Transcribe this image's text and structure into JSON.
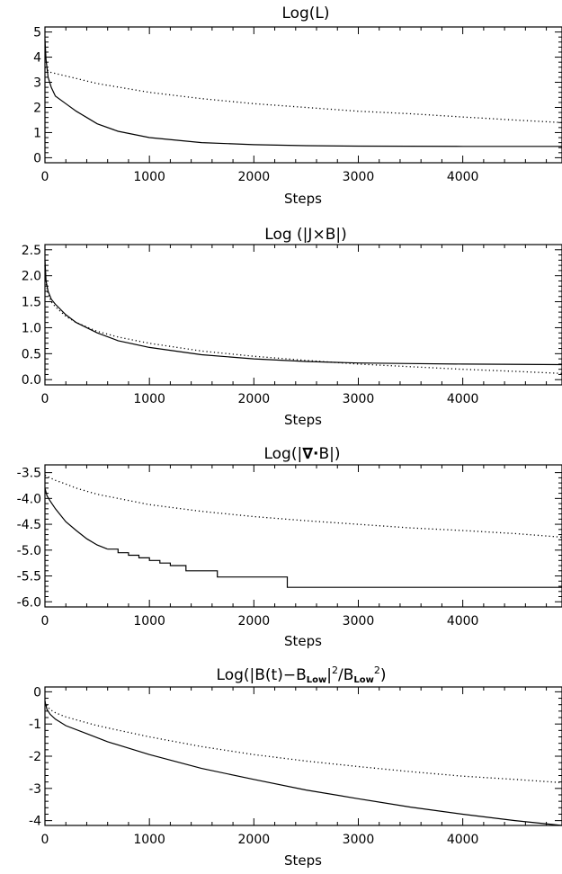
{
  "chart_data": [
    {
      "type": "line",
      "title": "Log(L)",
      "xlabel": "Steps",
      "ylabel": "",
      "xlim": [
        0,
        4950
      ],
      "ylim": [
        -0.2,
        5.2
      ],
      "xticks": [
        0,
        1000,
        2000,
        3000,
        4000
      ],
      "xtick_labels": [
        "0",
        "1000",
        "2000",
        "3000",
        "4000"
      ],
      "yticks": [
        0,
        1,
        2,
        3,
        4,
        5
      ],
      "ytick_labels": [
        "0",
        "1",
        "2",
        "3",
        "4",
        "5"
      ],
      "series": [
        {
          "style": "solid",
          "step": false,
          "x": [
            0,
            10,
            30,
            60,
            100,
            200,
            300,
            400,
            500,
            700,
            1000,
            1500,
            2000,
            2500,
            3000,
            4000,
            4950
          ],
          "y": [
            4.7,
            3.9,
            3.2,
            2.8,
            2.45,
            2.15,
            1.85,
            1.6,
            1.35,
            1.05,
            0.8,
            0.6,
            0.52,
            0.48,
            0.46,
            0.45,
            0.45
          ]
        },
        {
          "style": "dotted",
          "step": false,
          "x": [
            0,
            20,
            50,
            100,
            200,
            500,
            1000,
            1500,
            2000,
            2500,
            3000,
            3500,
            4000,
            4500,
            4950
          ],
          "y": [
            3.6,
            3.5,
            3.4,
            3.35,
            3.25,
            2.95,
            2.6,
            2.35,
            2.15,
            2.0,
            1.85,
            1.75,
            1.62,
            1.5,
            1.4
          ]
        }
      ]
    },
    {
      "type": "line",
      "title": "Log (|J×B|)",
      "xlabel": "Steps",
      "ylabel": "",
      "xlim": [
        0,
        4950
      ],
      "ylim": [
        -0.1,
        2.6
      ],
      "xticks": [
        0,
        1000,
        2000,
        3000,
        4000
      ],
      "xtick_labels": [
        "0",
        "1000",
        "2000",
        "3000",
        "4000"
      ],
      "yticks": [
        0,
        0.5,
        1.0,
        1.5,
        2.0,
        2.5
      ],
      "ytick_labels": [
        "0.0",
        "0.5",
        "1.0",
        "1.5",
        "2.0",
        "2.5"
      ],
      "series": [
        {
          "style": "solid",
          "step": false,
          "x": [
            0,
            10,
            30,
            60,
            100,
            200,
            300,
            500,
            700,
            1000,
            1500,
            2000,
            2500,
            3000,
            3500,
            4000,
            4950
          ],
          "y": [
            2.3,
            1.9,
            1.7,
            1.55,
            1.45,
            1.25,
            1.1,
            0.9,
            0.75,
            0.62,
            0.48,
            0.4,
            0.35,
            0.32,
            0.31,
            0.3,
            0.29
          ]
        },
        {
          "style": "dotted",
          "step": false,
          "x": [
            0,
            10,
            30,
            60,
            100,
            200,
            300,
            500,
            700,
            1000,
            1500,
            2000,
            2500,
            3000,
            3500,
            4000,
            4500,
            4950
          ],
          "y": [
            2.2,
            1.85,
            1.65,
            1.5,
            1.4,
            1.22,
            1.1,
            0.93,
            0.82,
            0.7,
            0.55,
            0.45,
            0.37,
            0.3,
            0.25,
            0.2,
            0.16,
            0.12
          ]
        }
      ]
    },
    {
      "type": "line",
      "title": "Log(|∇·B|)",
      "xlabel": "Steps",
      "ylabel": "",
      "xlim": [
        0,
        4950
      ],
      "ylim": [
        -6.1,
        -3.35
      ],
      "xticks": [
        0,
        1000,
        2000,
        3000,
        4000
      ],
      "xtick_labels": [
        "0",
        "1000",
        "2000",
        "3000",
        "4000"
      ],
      "yticks": [
        -6.0,
        -5.5,
        -5.0,
        -4.5,
        -4.0,
        -3.5
      ],
      "ytick_labels": [
        "-6.0",
        "-5.5",
        "-5.0",
        "-4.5",
        "-4.0",
        "-3.5"
      ],
      "series": [
        {
          "style": "solid",
          "step": false,
          "x": [
            0,
            20,
            50,
            100,
            200,
            300,
            400,
            500,
            600
          ],
          "y": [
            -3.8,
            -3.95,
            -4.05,
            -4.2,
            -4.45,
            -4.62,
            -4.78,
            -4.9,
            -4.98
          ]
        },
        {
          "style": "solid",
          "step": true,
          "x": [
            600,
            700,
            800,
            900,
            1000,
            1100,
            1200,
            1350,
            1650,
            2320,
            4950
          ],
          "y": [
            -4.98,
            -5.05,
            -5.1,
            -5.15,
            -5.2,
            -5.25,
            -5.3,
            -5.4,
            -5.52,
            -5.72,
            -5.72
          ]
        },
        {
          "style": "dotted",
          "step": false,
          "x": [
            0,
            50,
            100,
            200,
            300,
            500,
            700,
            1000,
            1500,
            2000,
            2500,
            3000,
            3500,
            4000,
            4500,
            4950
          ],
          "y": [
            -3.55,
            -3.6,
            -3.65,
            -3.72,
            -3.8,
            -3.92,
            -4.0,
            -4.12,
            -4.25,
            -4.35,
            -4.43,
            -4.5,
            -4.57,
            -4.62,
            -4.68,
            -4.75
          ]
        }
      ]
    },
    {
      "type": "line",
      "title": "Log(|B(t)−B_Low|²/B_Low²)",
      "xlabel": "Steps",
      "ylabel": "",
      "xlim": [
        0,
        4950
      ],
      "ylim": [
        -4.15,
        0.15
      ],
      "xticks": [
        0,
        1000,
        2000,
        3000,
        4000
      ],
      "xtick_labels": [
        "0",
        "1000",
        "2000",
        "3000",
        "4000"
      ],
      "yticks": [
        -4,
        -3,
        -2,
        -1,
        0
      ],
      "ytick_labels": [
        "-4",
        "-3",
        "-2",
        "-1",
        "0"
      ],
      "series": [
        {
          "style": "solid",
          "step": false,
          "x": [
            0,
            20,
            50,
            100,
            200,
            400,
            600,
            1000,
            1500,
            2000,
            2500,
            3000,
            3500,
            4000,
            4500,
            4950
          ],
          "y": [
            -0.3,
            -0.55,
            -0.7,
            -0.85,
            -1.05,
            -1.3,
            -1.55,
            -1.95,
            -2.38,
            -2.72,
            -3.05,
            -3.32,
            -3.58,
            -3.8,
            -4.0,
            -4.15
          ]
        },
        {
          "style": "dotted",
          "step": false,
          "x": [
            0,
            20,
            50,
            100,
            200,
            500,
            1000,
            1500,
            2000,
            2500,
            3000,
            3500,
            4000,
            4500,
            4950
          ],
          "y": [
            -0.3,
            -0.45,
            -0.55,
            -0.65,
            -0.78,
            -1.05,
            -1.4,
            -1.7,
            -1.95,
            -2.15,
            -2.32,
            -2.48,
            -2.62,
            -2.72,
            -2.82
          ]
        }
      ]
    }
  ],
  "title_parts": {
    "j_x_b": [
      "Log (|J",
      "×",
      "B|)"
    ],
    "div_b": [
      "Log(|",
      "∇",
      "·",
      "B|)"
    ],
    "residual": {
      "pre": "Log(|B(t)−B",
      "sub1": "Low",
      "mid": "|",
      "sup1": "2",
      "slash": "/B",
      "sub2": "Low",
      "sup2": "2",
      "post": ")"
    }
  }
}
